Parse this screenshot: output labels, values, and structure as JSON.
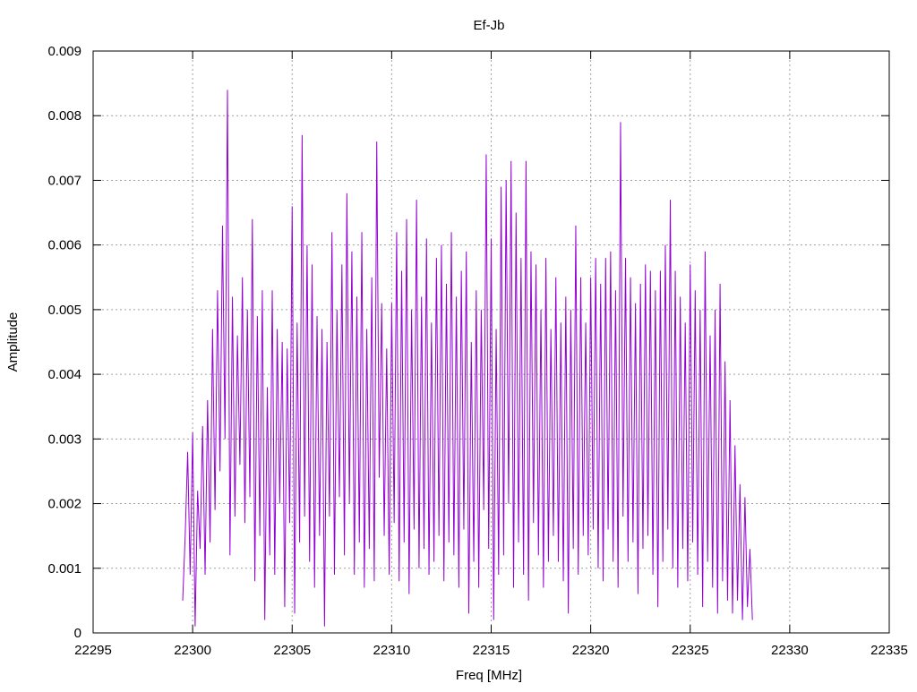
{
  "chart_data": {
    "type": "line",
    "title": "Ef-Jb",
    "xlabel": "Freq [MHz]",
    "ylabel": "Amplitude",
    "xlim": [
      22295,
      22335
    ],
    "ylim": [
      0,
      0.009
    ],
    "x_ticks": [
      22295,
      22300,
      22305,
      22310,
      22315,
      22320,
      22325,
      22330,
      22335
    ],
    "y_ticks": [
      0,
      0.001,
      0.002,
      0.003,
      0.004,
      0.005,
      0.006,
      0.007,
      0.008,
      0.009
    ],
    "x_tick_labels": [
      "22295",
      "22300",
      "22305",
      "22310",
      "22315",
      "22320",
      "22325",
      "22330",
      "22335"
    ],
    "y_tick_labels": [
      "0",
      "0.001",
      "0.002",
      "0.003",
      "0.004",
      "0.005",
      "0.006",
      "0.007",
      "0.008",
      "0.009"
    ],
    "grid": true,
    "series_color": "#9400d3",
    "series": [
      {
        "x_start": 22299.5,
        "x_step": 0.125,
        "values": [
          0.0005,
          0.0015,
          0.0028,
          0.0009,
          0.0031,
          0.0001,
          0.0022,
          0.0013,
          0.0032,
          0.0009,
          0.0036,
          0.0014,
          0.0047,
          0.0019,
          0.0053,
          0.0025,
          0.0063,
          0.003,
          0.0084,
          0.0012,
          0.0052,
          0.0018,
          0.0046,
          0.0026,
          0.0055,
          0.0017,
          0.005,
          0.0021,
          0.0064,
          0.0008,
          0.0049,
          0.0015,
          0.0053,
          0.0002,
          0.0038,
          0.0012,
          0.0053,
          0.0009,
          0.0047,
          0.002,
          0.0045,
          0.0004,
          0.0044,
          0.0017,
          0.0066,
          0.0003,
          0.0048,
          0.0014,
          0.0077,
          0.0018,
          0.006,
          0.0011,
          0.0057,
          0.0007,
          0.0049,
          0.0015,
          0.0047,
          0.0001,
          0.0045,
          0.0018,
          0.0062,
          0.0009,
          0.005,
          0.0021,
          0.0057,
          0.0012,
          0.0068,
          0.002,
          0.0059,
          0.0009,
          0.0052,
          0.0014,
          0.0062,
          0.0007,
          0.0047,
          0.0013,
          0.0055,
          0.0008,
          0.0076,
          0.0024,
          0.0051,
          0.0015,
          0.0044,
          0.0009,
          0.0051,
          0.0017,
          0.0062,
          0.0008,
          0.0056,
          0.0014,
          0.0064,
          0.0006,
          0.005,
          0.0016,
          0.0067,
          0.001,
          0.0052,
          0.0013,
          0.0061,
          0.0009,
          0.0048,
          0.0011,
          0.0058,
          0.0015,
          0.006,
          0.0008,
          0.0054,
          0.0014,
          0.0062,
          0.0012,
          0.0052,
          0.0007,
          0.0056,
          0.0016,
          0.0059,
          0.0003,
          0.0045,
          0.0011,
          0.0053,
          0.0007,
          0.005,
          0.0019,
          0.0074,
          0.0013,
          0.0061,
          0.0002,
          0.0047,
          0.0009,
          0.0069,
          0.0012,
          0.007,
          0.002,
          0.0073,
          0.0007,
          0.0065,
          0.0014,
          0.0058,
          0.0009,
          0.0073,
          0.0005,
          0.0059,
          0.0017,
          0.0057,
          0.0012,
          0.005,
          0.0007,
          0.0058,
          0.0011,
          0.0047,
          0.0015,
          0.0055,
          0.0011,
          0.0048,
          0.0008,
          0.0052,
          0.0003,
          0.005,
          0.0013,
          0.0063,
          0.0009,
          0.0055,
          0.0015,
          0.0048,
          0.0012,
          0.0055,
          0.0016,
          0.0058,
          0.001,
          0.0054,
          0.0008,
          0.0058,
          0.0016,
          0.0059,
          0.0011,
          0.0053,
          0.0007,
          0.0079,
          0.0018,
          0.0058,
          0.0011,
          0.0055,
          0.0014,
          0.0051,
          0.0006,
          0.0054,
          0.0013,
          0.0057,
          0.0015,
          0.0056,
          0.0009,
          0.0053,
          0.0004,
          0.0056,
          0.0011,
          0.006,
          0.0016,
          0.0067,
          0.001,
          0.0056,
          0.0007,
          0.0052,
          0.0013,
          0.0048,
          0.0008,
          0.0057,
          0.0014,
          0.0053,
          0.0009,
          0.005,
          0.0004,
          0.0059,
          0.0011,
          0.0046,
          0.0007,
          0.005,
          0.0003,
          0.0054,
          0.0008,
          0.0042,
          0.0005,
          0.0036,
          0.0003,
          0.0029,
          0.0005,
          0.0023,
          0.0002,
          0.0021,
          0.0004,
          0.0013,
          0.0002
        ]
      }
    ]
  }
}
